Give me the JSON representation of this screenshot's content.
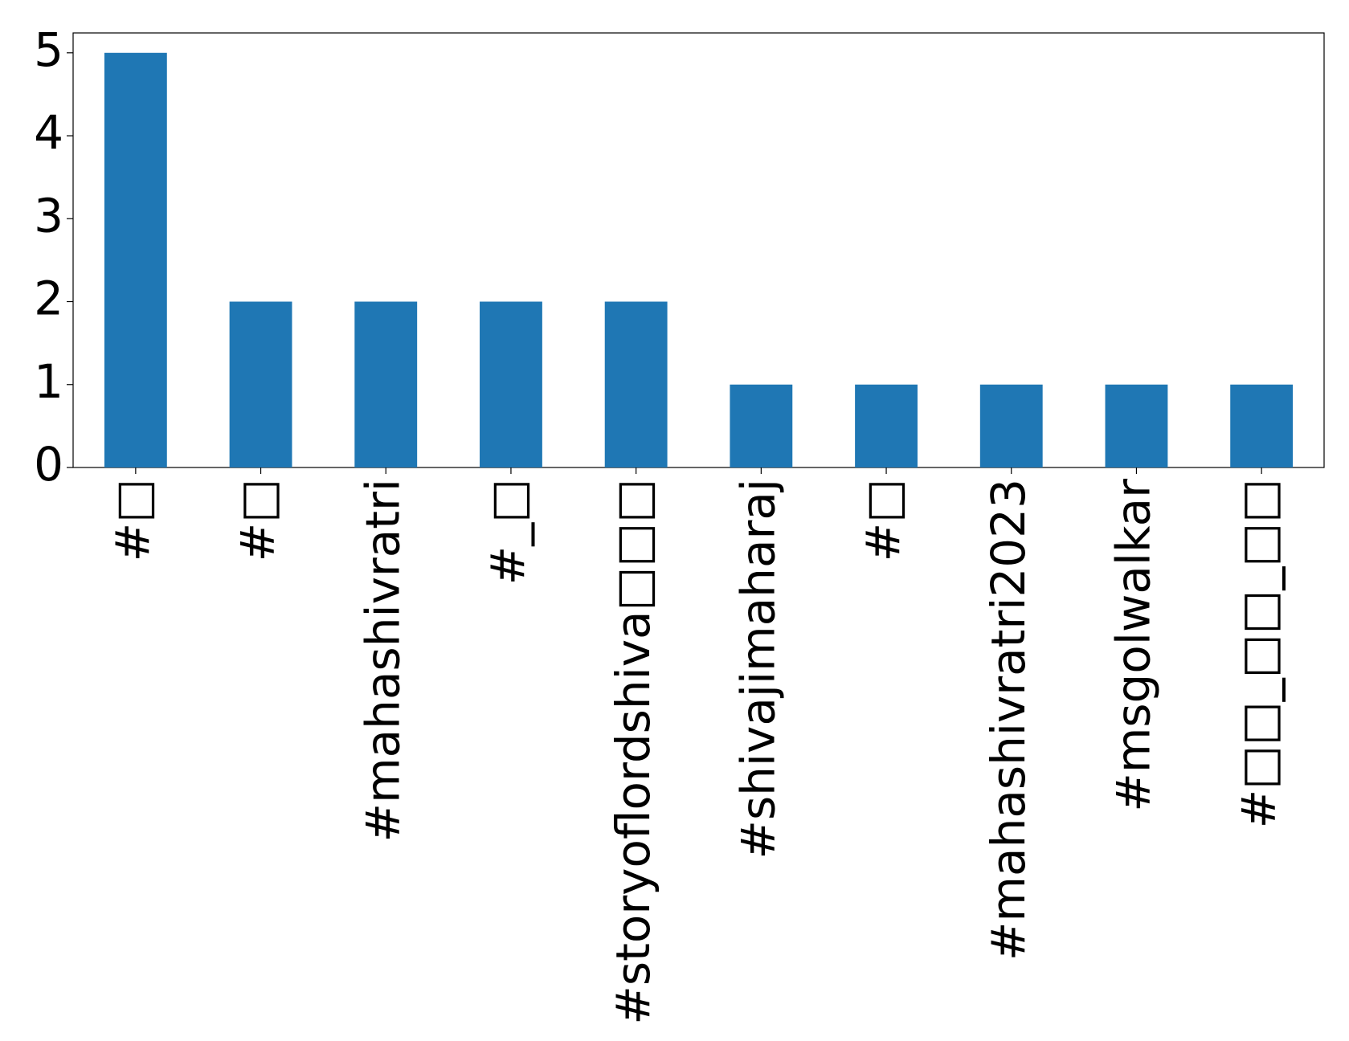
{
  "chart_data": {
    "type": "bar",
    "categories": [
      "#□",
      "#□",
      "#mahashivratri",
      "#_□",
      "#storyoflordshiva□□□",
      "#shivajimaharaj",
      "#□",
      "#mahashivratri2023",
      "#msgolwalkar",
      "#□□_□□_□□"
    ],
    "values": [
      5,
      2,
      2,
      2,
      2,
      1,
      1,
      1,
      1,
      1
    ],
    "color": "#1f77b4",
    "ylim": [
      0,
      5.24
    ],
    "yticks": [
      0,
      1,
      2,
      3,
      4,
      5
    ],
    "grid": false
  }
}
